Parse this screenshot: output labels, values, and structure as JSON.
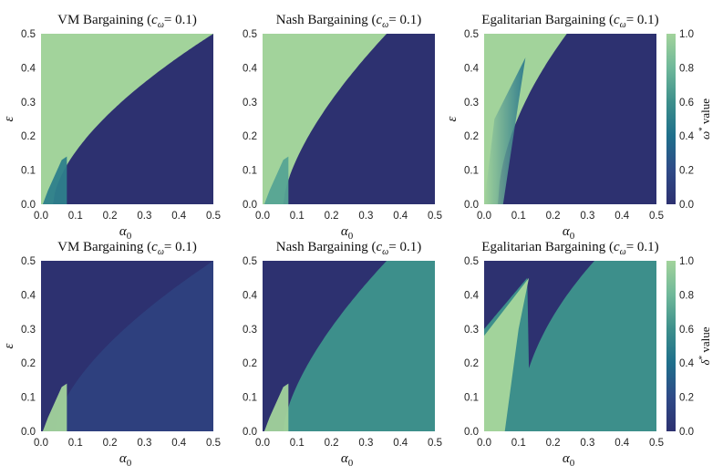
{
  "colorscale": {
    "stops": [
      {
        "v": 0.0,
        "color": "#2d3170"
      },
      {
        "v": 0.2,
        "color": "#2f4a87"
      },
      {
        "v": 0.4,
        "color": "#1f6f8b"
      },
      {
        "v": 0.6,
        "color": "#3d8f8b"
      },
      {
        "v": 0.8,
        "color": "#6fb89a"
      },
      {
        "v": 1.0,
        "color": "#a2d39b"
      }
    ]
  },
  "colorbars": [
    {
      "label_html": "ω* value",
      "label_base": "ω",
      "label_sup": "*",
      "label_rest": " value",
      "ticks": [
        "0.0",
        "0.2",
        "0.4",
        "0.6",
        "0.8",
        "1.0"
      ]
    },
    {
      "label_html": "δ* value",
      "label_base": "δ",
      "label_sup": "*",
      "label_rest": " value",
      "ticks": [
        "0.0",
        "0.2",
        "0.4",
        "0.6",
        "0.8",
        "1.0"
      ]
    }
  ],
  "chart_data": [
    {
      "type": "heatmap",
      "title_main": "VM Bargaining (",
      "title_c": "c",
      "title_sub": "ω",
      "title_end": "= 0.1)",
      "xlabel": "α",
      "xlabel_sub": "0",
      "ylabel": "ε",
      "xlim": [
        0,
        0.5
      ],
      "ylim": [
        0,
        0.5
      ],
      "xticks": [
        "0.0",
        "0.1",
        "0.2",
        "0.3",
        "0.4",
        "0.5"
      ],
      "yticks": [
        "0.0",
        "0.1",
        "0.2",
        "0.3",
        "0.4",
        "0.5"
      ],
      "quantity": "omega",
      "regions": {
        "upper_left": 1.0,
        "lower_right": 0.0,
        "small_strip": 0.5
      }
    },
    {
      "type": "heatmap",
      "title_main": "Nash Bargaining (",
      "title_c": "c",
      "title_sub": "ω",
      "title_end": "= 0.1)",
      "xlabel": "α",
      "xlabel_sub": "0",
      "ylabel": "",
      "xlim": [
        0,
        0.5
      ],
      "ylim": [
        0,
        0.5
      ],
      "xticks": [
        "0.0",
        "0.1",
        "0.2",
        "0.3",
        "0.4",
        "0.5"
      ],
      "yticks": [
        "0.0",
        "0.1",
        "0.2",
        "0.3",
        "0.4",
        "0.5"
      ],
      "quantity": "omega",
      "regions": {
        "upper_left": 1.0,
        "lower_right": 0.0,
        "small_strip": 0.7
      }
    },
    {
      "type": "heatmap",
      "title_main": "Egalitarian Bargaining (",
      "title_c": "c",
      "title_sub": "ω",
      "title_end": "= 0.1)",
      "xlabel": "α",
      "xlabel_sub": "0",
      "ylabel": "ε",
      "xlim": [
        0,
        0.5
      ],
      "ylim": [
        0,
        0.5
      ],
      "xticks": [
        "0.0",
        "0.1",
        "0.2",
        "0.3",
        "0.4",
        "0.5"
      ],
      "yticks": [
        "0.0",
        "0.1",
        "0.2",
        "0.3",
        "0.4",
        "0.5"
      ],
      "quantity": "omega",
      "regions": {
        "upper_left": 1.0,
        "lower_right": 0.0,
        "gradient_band": 0.6
      }
    },
    {
      "type": "heatmap",
      "title_main": "VM Bargaining (",
      "title_c": "c",
      "title_sub": "ω",
      "title_end": "= 0.1)",
      "xlabel": "α",
      "xlabel_sub": "0",
      "ylabel": "ε",
      "xlim": [
        0,
        0.5
      ],
      "ylim": [
        0,
        0.5
      ],
      "xticks": [
        "0.0",
        "0.1",
        "0.2",
        "0.3",
        "0.4",
        "0.5"
      ],
      "yticks": [
        "0.0",
        "0.1",
        "0.2",
        "0.3",
        "0.4",
        "0.5"
      ],
      "quantity": "delta",
      "regions": {
        "upper_left": 0.0,
        "lower_right": 0.12,
        "small_strip": 1.0
      }
    },
    {
      "type": "heatmap",
      "title_main": "Nash Bargaining (",
      "title_c": "c",
      "title_sub": "ω",
      "title_end": "= 0.1)",
      "xlabel": "α",
      "xlabel_sub": "0",
      "ylabel": "",
      "xlim": [
        0,
        0.5
      ],
      "ylim": [
        0,
        0.5
      ],
      "xticks": [
        "0.0",
        "0.1",
        "0.2",
        "0.3",
        "0.4",
        "0.5"
      ],
      "yticks": [
        "0.0",
        "0.1",
        "0.2",
        "0.3",
        "0.4",
        "0.5"
      ],
      "quantity": "delta",
      "regions": {
        "upper_left": 0.0,
        "lower_right": 0.6,
        "small_strip": 1.0
      }
    },
    {
      "type": "heatmap",
      "title_main": "Egalitarian Bargaining (",
      "title_c": "c",
      "title_sub": "ω",
      "title_end": "= 0.1)",
      "xlabel": "α",
      "xlabel_sub": "0",
      "ylabel": "",
      "xlim": [
        0,
        0.5
      ],
      "ylim": [
        0,
        0.5
      ],
      "xticks": [
        "0.0",
        "0.1",
        "0.2",
        "0.3",
        "0.4",
        "0.5"
      ],
      "yticks": [
        "0.0",
        "0.1",
        "0.2",
        "0.3",
        "0.4",
        "0.5"
      ],
      "quantity": "delta",
      "regions": {
        "upper_left": 0.0,
        "lower_right": 0.6,
        "light_band": 1.0
      }
    }
  ]
}
